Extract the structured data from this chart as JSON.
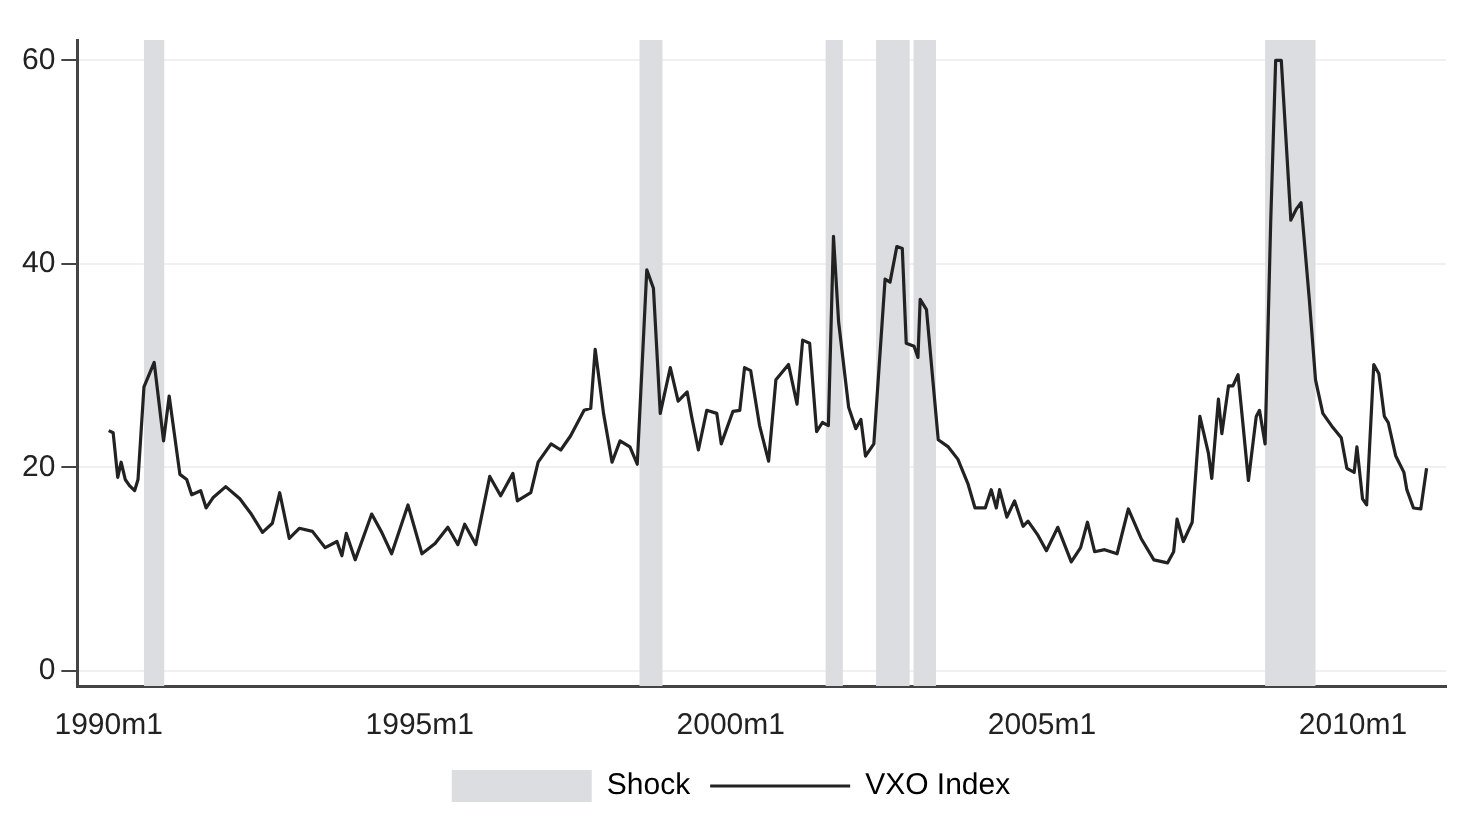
{
  "chart_data": {
    "type": "line",
    "legend": "bottom",
    "grid": "y",
    "marker": "none",
    "line_style": "solid",
    "xlim": [
      "1989-07-01",
      "2011-07-01"
    ],
    "ylim": [
      -1.5,
      62
    ],
    "xticks": [
      {
        "value": "1990-01",
        "label": "1990m1"
      },
      {
        "value": "1995-01",
        "label": "1995m1"
      },
      {
        "value": "2000-01",
        "label": "2000m1"
      },
      {
        "value": "2005-01",
        "label": "2005m1"
      },
      {
        "value": "2010-01",
        "label": "2010m1"
      }
    ],
    "yticks": [
      0,
      20,
      40,
      60
    ],
    "bands": [
      {
        "axis": "x",
        "from": "1990-07-27",
        "to": "1990-11-23",
        "label": "Shock",
        "color": "#dcdde0"
      },
      {
        "axis": "x",
        "from": "1998-07-14",
        "to": "1998-11-26",
        "color": "#dcdde0"
      },
      {
        "axis": "x",
        "from": "2001-07-11",
        "to": "2001-10-20",
        "color": "#dcdde0"
      },
      {
        "axis": "x",
        "from": "2002-05-03",
        "to": "2002-11-16",
        "color": "#dcdde0"
      },
      {
        "axis": "x",
        "from": "2002-12-09",
        "to": "2003-04-20",
        "color": "#dcdde0"
      },
      {
        "axis": "x",
        "from": "2008-08-03",
        "to": "2009-05-26",
        "color": "#dcdde0"
      }
    ],
    "series": [
      {
        "name": "VXO Index",
        "color": "#222222",
        "x": [
          "1990-01-01",
          "1990-01-27",
          "1990-02-23",
          "1990-03-15",
          "1990-04-08",
          "1990-05-03",
          "1990-06-02",
          "1990-06-22",
          "1990-07-27",
          "1990-09-25",
          "1990-11-19",
          "1990-12-22",
          "1991-02-23",
          "1991-04-04",
          "1991-05-03",
          "1991-06-25",
          "1991-07-27",
          "1991-09-05",
          "1991-11-19",
          "1992-02-10",
          "1992-04-17",
          "1992-06-22",
          "1992-08-19",
          "1992-10-01",
          "1992-11-26",
          "1993-01-24",
          "1993-04-11",
          "1993-06-25",
          "1993-09-02",
          "1993-10-01",
          "1993-10-27",
          "1993-12-18",
          "1994-03-25",
          "1994-05-23",
          "1994-07-20",
          "1994-10-24",
          "1995-01-14",
          "1995-04-01",
          "1995-06-15",
          "1995-08-13",
          "1995-09-22",
          "1995-11-26",
          "1996-02-16",
          "1996-04-20",
          "1996-07-01",
          "1996-07-27",
          "1996-10-14",
          "1996-11-26",
          "1997-02-10",
          "1997-04-08",
          "1997-06-05",
          "1997-08-23",
          "1997-10-01",
          "1997-10-27",
          "1997-12-15",
          "1998-02-03",
          "1998-03-22",
          "1998-05-19",
          "1998-07-01",
          "1998-08-26",
          "1998-10-04",
          "1998-11-13",
          "1999-01-11",
          "1999-02-26",
          "1999-04-20",
          "1999-05-16",
          "1999-06-25",
          "1999-08-13",
          "1999-10-11",
          "1999-11-06",
          "2000-01-14",
          "2000-02-23",
          "2000-03-22",
          "2000-04-27",
          "2000-06-18",
          "2000-08-10",
          "2000-09-22",
          "2000-12-05",
          "2001-01-24",
          "2001-02-26",
          "2001-04-08",
          "2001-05-19",
          "2001-06-22",
          "2001-07-27",
          "2001-08-26",
          "2001-09-25",
          "2001-11-23",
          "2002-01-04",
          "2002-02-03",
          "2002-03-02",
          "2002-04-20",
          "2002-06-25",
          "2002-07-24",
          "2002-09-02",
          "2002-10-04",
          "2002-10-27",
          "2002-12-12",
          "2003-01-04",
          "2003-01-17",
          "2003-02-23",
          "2003-05-03",
          "2003-07-01",
          "2003-08-26",
          "2003-10-24",
          "2003-12-05",
          "2004-02-03",
          "2004-03-09",
          "2004-04-08",
          "2004-04-27",
          "2004-06-09",
          "2004-07-24",
          "2004-09-12",
          "2004-10-11",
          "2004-12-09",
          "2005-01-27",
          "2005-04-04",
          "2005-06-22",
          "2005-08-16",
          "2005-09-25",
          "2005-11-06",
          "2006-01-04",
          "2006-03-18",
          "2006-05-23",
          "2006-08-06",
          "2006-10-20",
          "2007-01-08",
          "2007-02-13",
          "2007-03-05",
          "2007-04-11",
          "2007-06-02",
          "2007-07-17",
          "2007-09-05",
          "2007-09-25",
          "2007-11-03",
          "2007-11-23",
          "2008-01-01",
          "2008-01-27",
          "2008-02-26",
          "2008-03-25",
          "2008-04-27",
          "2008-06-12",
          "2008-07-01",
          "2008-08-03",
          "2008-09-05",
          "2008-10-04",
          "2008-11-06",
          "2009-01-01",
          "2009-02-03",
          "2009-03-02",
          "2009-04-20",
          "2009-05-26",
          "2009-07-08",
          "2009-09-05",
          "2009-10-24",
          "2009-11-26",
          "2010-01-08",
          "2010-01-24",
          "2010-02-26",
          "2010-03-22",
          "2010-05-03",
          "2010-06-02",
          "2010-07-04",
          "2010-07-27",
          "2010-09-09",
          "2010-10-27",
          "2010-11-13",
          "2010-12-22",
          "2011-02-03",
          "2011-03-09"
        ],
        "values": [
          23.6,
          23.4,
          19.0,
          20.5,
          18.8,
          18.2,
          17.7,
          18.8,
          27.9,
          30.3,
          22.6,
          27.0,
          19.3,
          18.8,
          17.3,
          17.7,
          16.0,
          17.0,
          18.1,
          16.9,
          15.4,
          13.6,
          14.5,
          17.5,
          13.0,
          14.0,
          13.7,
          12.1,
          12.7,
          11.3,
          13.5,
          10.9,
          15.4,
          13.6,
          11.5,
          16.3,
          11.5,
          12.5,
          14.1,
          12.4,
          14.4,
          12.4,
          19.1,
          17.2,
          19.4,
          16.7,
          17.5,
          20.5,
          22.3,
          21.7,
          23.1,
          25.6,
          25.8,
          31.6,
          25.3,
          20.5,
          22.6,
          22.0,
          20.3,
          39.4,
          37.6,
          25.3,
          29.8,
          26.5,
          27.4,
          25.0,
          21.7,
          25.6,
          25.3,
          22.3,
          25.5,
          25.6,
          29.8,
          29.5,
          24.1,
          20.6,
          28.6,
          30.1,
          26.2,
          32.5,
          32.2,
          23.5,
          24.4,
          24.1,
          42.7,
          34.3,
          25.9,
          23.8,
          24.7,
          21.1,
          22.3,
          38.5,
          38.2,
          41.7,
          41.5,
          32.2,
          31.9,
          30.8,
          36.5,
          35.5,
          22.7,
          22.0,
          20.8,
          18.4,
          16.0,
          16.0,
          17.8,
          16.0,
          17.8,
          15.1,
          16.7,
          14.2,
          14.7,
          13.3,
          11.8,
          14.1,
          10.7,
          12.1,
          14.6,
          11.7,
          11.9,
          11.5,
          15.9,
          13.0,
          10.9,
          10.6,
          11.7,
          14.9,
          12.7,
          14.6,
          25.0,
          21.4,
          18.9,
          26.7,
          23.3,
          28.0,
          28.0,
          29.1,
          24.4,
          18.7,
          25.0,
          25.6,
          22.3,
          44.2,
          60,
          60,
          44.3,
          45.4,
          46.0,
          36.4,
          28.6,
          25.3,
          23.9,
          22.9,
          19.9,
          19.5,
          22.0,
          16.9,
          16.3,
          30.1,
          29.2,
          25.0,
          24.4,
          21.1,
          19.5,
          17.8,
          16.0,
          15.9,
          19.9
        ]
      }
    ]
  }
}
